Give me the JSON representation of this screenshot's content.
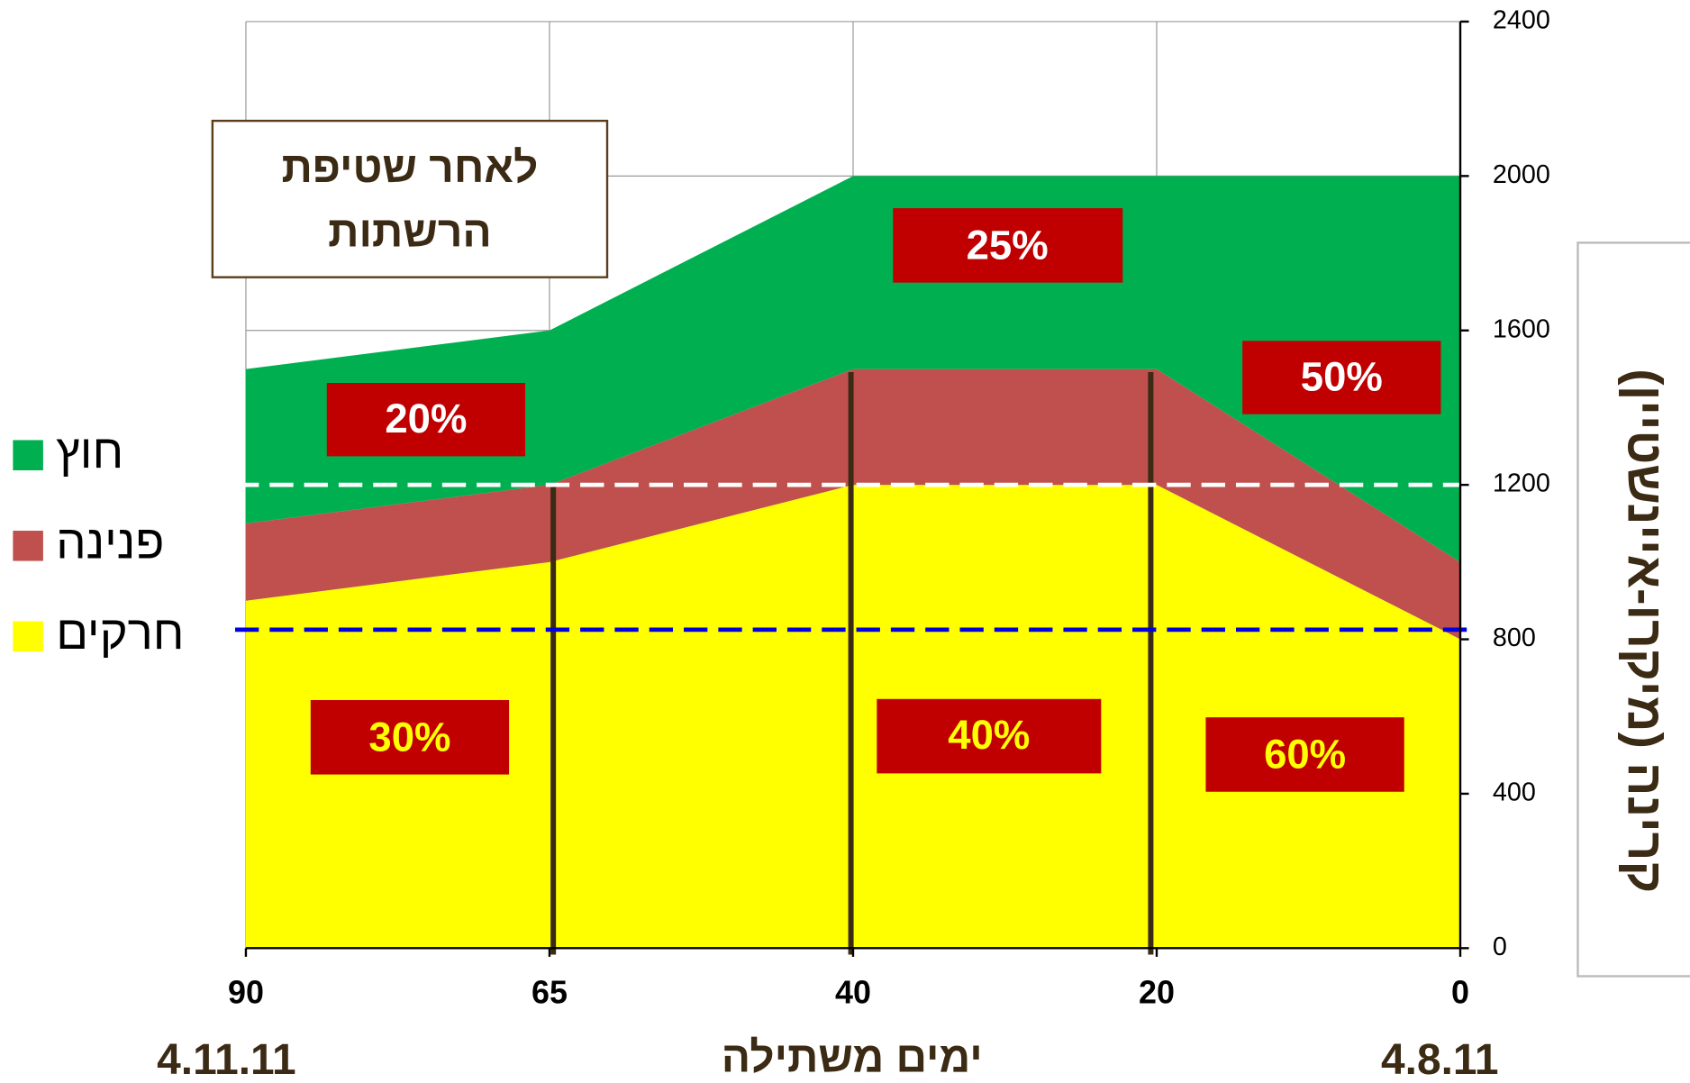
{
  "chart_data": {
    "type": "area",
    "categories": [
      "90",
      "65",
      "40",
      "20",
      "0"
    ],
    "series": [
      {
        "name": "חרקים",
        "color": "#ffff00",
        "values": [
          900,
          1000,
          1200,
          1200,
          800
        ]
      },
      {
        "name": "פנינה",
        "color": "#c0504d",
        "values": [
          200,
          200,
          300,
          300,
          200
        ]
      },
      {
        "name": "חוץ",
        "color": "#00b050",
        "values": [
          400,
          400,
          500,
          500,
          1000
        ]
      }
    ],
    "stacked": true,
    "ylim": [
      0,
      2400
    ],
    "yticks": [
      0,
      400,
      800,
      1200,
      1600,
      2000,
      2400
    ],
    "y_axis_side": "right",
    "grid": true,
    "ylabel": "קרינה (מיקרו-איינשטיין)",
    "xlabel": "ימים משתילה",
    "date_labels": [
      "4.11.11",
      "4.8.11"
    ],
    "text_box": [
      "לאחר שטיפת",
      "הרשתות"
    ],
    "reference_lines": [
      {
        "value": 1200,
        "color": "#ffffff"
      },
      {
        "value": 825,
        "color": "#0000dd"
      }
    ],
    "annotations": [
      "20%",
      "25%",
      "50%",
      "30%",
      "40%",
      "60%"
    ]
  }
}
